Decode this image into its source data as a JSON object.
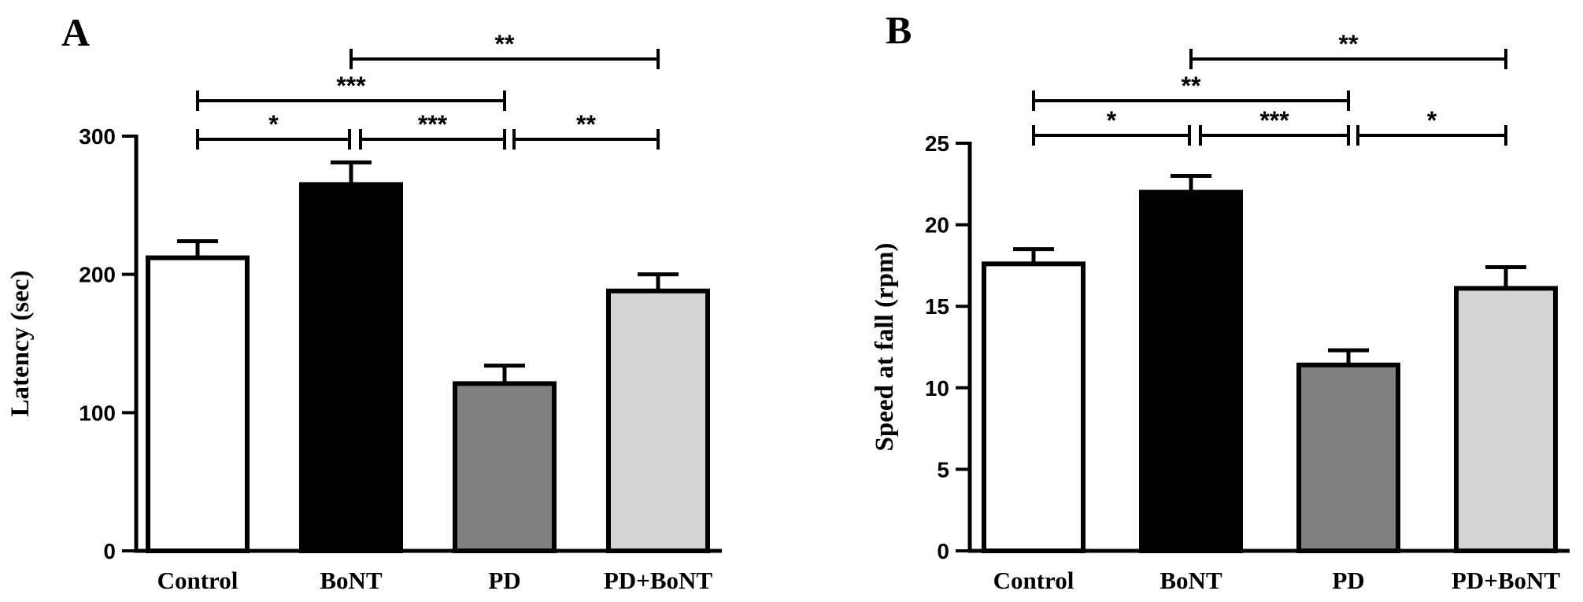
{
  "chart_data": [
    {
      "type": "bar",
      "panel": "A",
      "categories": [
        "Control",
        "BoNT",
        "PD",
        "PD+BoNT"
      ],
      "values": [
        212,
        265,
        121,
        188
      ],
      "errors": [
        12,
        16,
        13,
        12
      ],
      "colors": [
        "#ffffff",
        "#000000",
        "#808080",
        "#d4d4d4"
      ],
      "xlabel": "",
      "ylabel": "Latency (sec)",
      "ylim": [
        0,
        300
      ],
      "yticks": [
        0,
        100,
        200,
        300
      ],
      "grid": false,
      "significance": [
        {
          "from": 0,
          "to": 1,
          "label": "*"
        },
        {
          "from": 1,
          "to": 2,
          "label": "***"
        },
        {
          "from": 2,
          "to": 3,
          "label": "**"
        },
        {
          "from": 0,
          "to": 2,
          "label": "***"
        },
        {
          "from": 1,
          "to": 3,
          "label": "**"
        }
      ]
    },
    {
      "type": "bar",
      "panel": "B",
      "categories": [
        "Control",
        "BoNT",
        "PD",
        "PD+BoNT"
      ],
      "values": [
        17.6,
        22.0,
        11.4,
        16.1
      ],
      "errors": [
        0.9,
        1.0,
        0.9,
        1.3
      ],
      "colors": [
        "#ffffff",
        "#000000",
        "#808080",
        "#d4d4d4"
      ],
      "xlabel": "",
      "ylabel": "Speed at fall (rpm)",
      "ylim": [
        0,
        25
      ],
      "yticks": [
        0,
        5,
        10,
        15,
        20,
        25
      ],
      "grid": false,
      "significance": [
        {
          "from": 0,
          "to": 1,
          "label": "*"
        },
        {
          "from": 1,
          "to": 2,
          "label": "***"
        },
        {
          "from": 2,
          "to": 3,
          "label": "*"
        },
        {
          "from": 0,
          "to": 2,
          "label": "**"
        },
        {
          "from": 1,
          "to": 3,
          "label": "**"
        }
      ]
    }
  ]
}
